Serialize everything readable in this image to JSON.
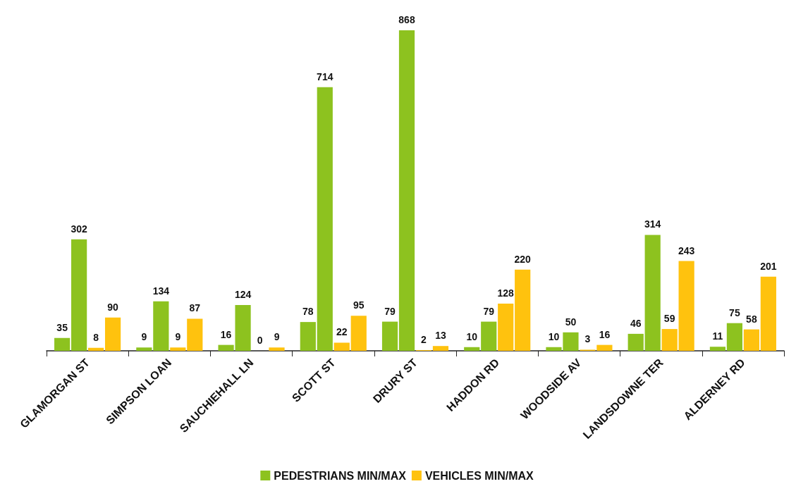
{
  "chart_data": {
    "type": "bar",
    "categories": [
      "GLAMORGAN ST",
      "SIMPSON LOAN",
      "SAUCHIEHALL LN",
      "SCOTT ST",
      "DRURY ST",
      "HADDON RD",
      "WOODSIDE AV",
      "LANDSDOWNE TER",
      "ALDERNEY RD"
    ],
    "series": [
      {
        "name": "PEDESTRIANS MIN/MAX",
        "color": "#8dc21f",
        "values": [
          35,
          9,
          16,
          78,
          79,
          10,
          10,
          46,
          11
        ]
      },
      {
        "color": "#8dc21f",
        "values": [
          302,
          134,
          124,
          714,
          868,
          79,
          50,
          314,
          75
        ]
      },
      {
        "name": "VEHICLES MIN/MAX",
        "color": "#ffc20e",
        "values": [
          8,
          9,
          0,
          22,
          2,
          128,
          3,
          59,
          58
        ]
      },
      {
        "color": "#ffc20e",
        "values": [
          90,
          87,
          9,
          95,
          13,
          220,
          16,
          243,
          201
        ]
      }
    ],
    "data_labels": true,
    "legend": "bottom",
    "tick_labels": "x"
  }
}
